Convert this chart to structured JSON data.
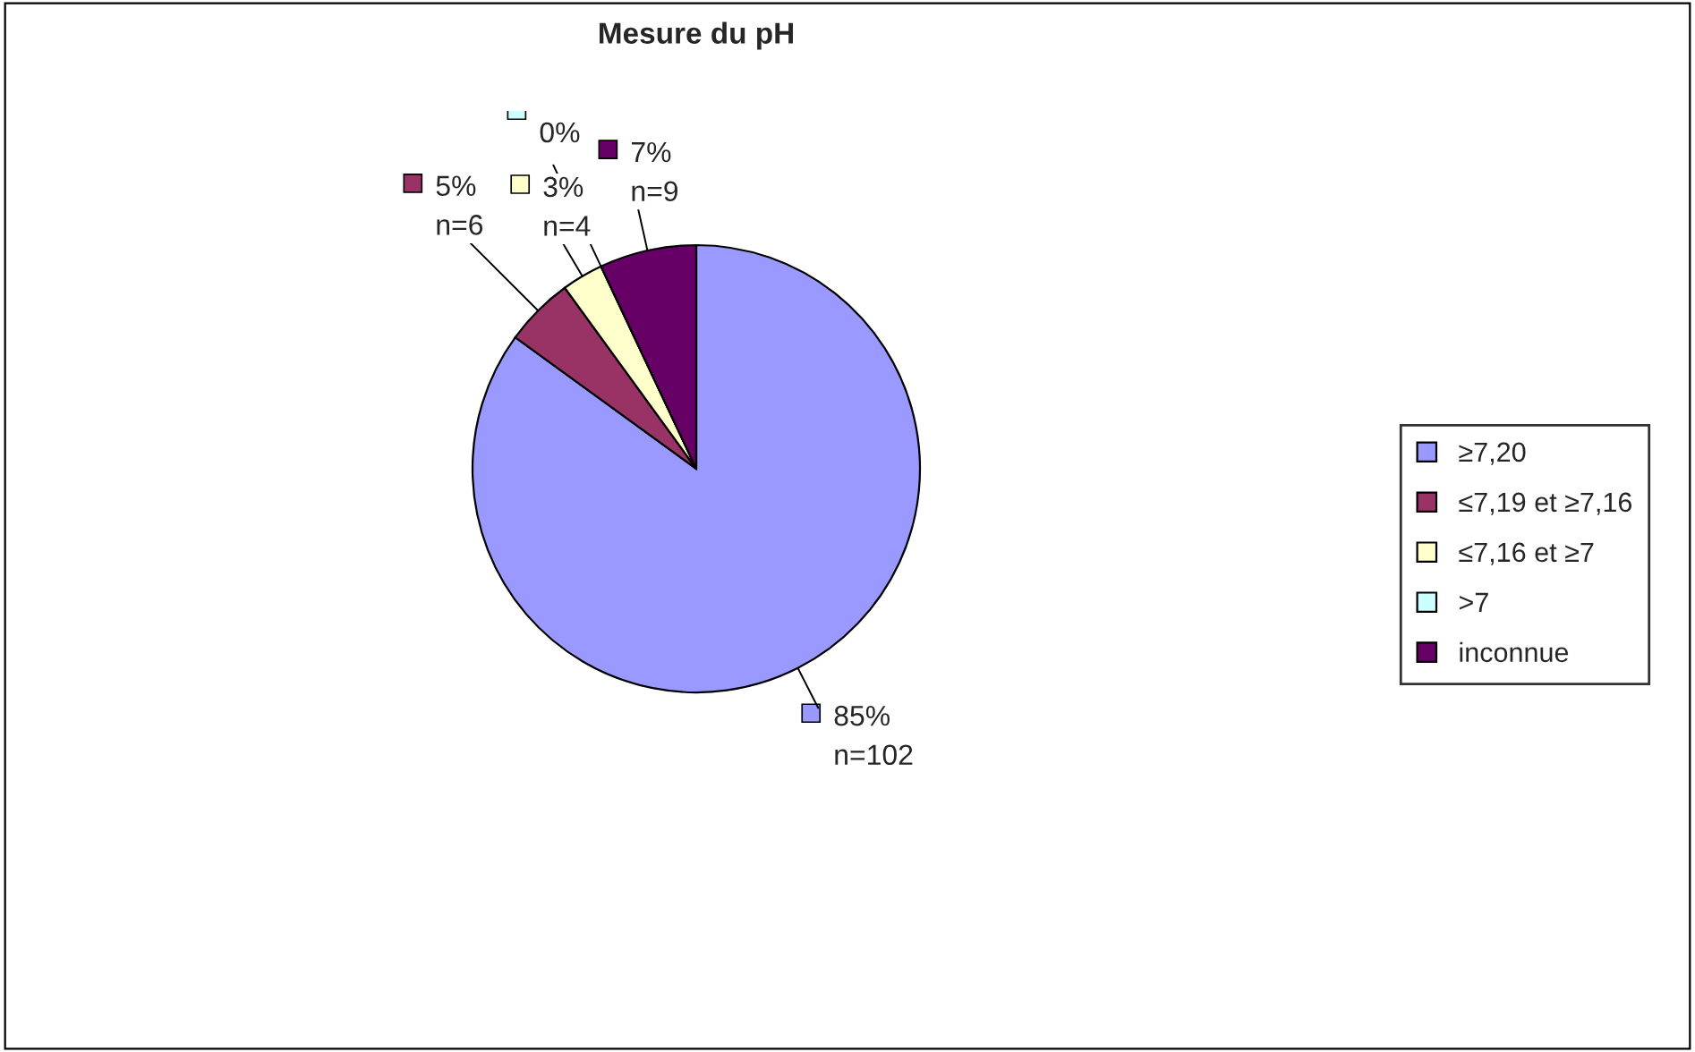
{
  "chart_data": {
    "type": "pie",
    "title": "Mesure du pH",
    "categories": [
      "≥7,20",
      "≤7,19 et ≥7,16",
      "≤7,16 et ≥7",
      ">7",
      "inconnue"
    ],
    "values": [
      85,
      5,
      3,
      0,
      7
    ],
    "value_labels": [
      "85%\nn=102",
      "5%\nn=6",
      "3%\nn=4",
      "0%",
      "7%\nn=9"
    ],
    "colors": [
      "#9999ff",
      "#993366",
      "#ffffcc",
      "#ccffff",
      "#660066"
    ],
    "legend": "right"
  }
}
